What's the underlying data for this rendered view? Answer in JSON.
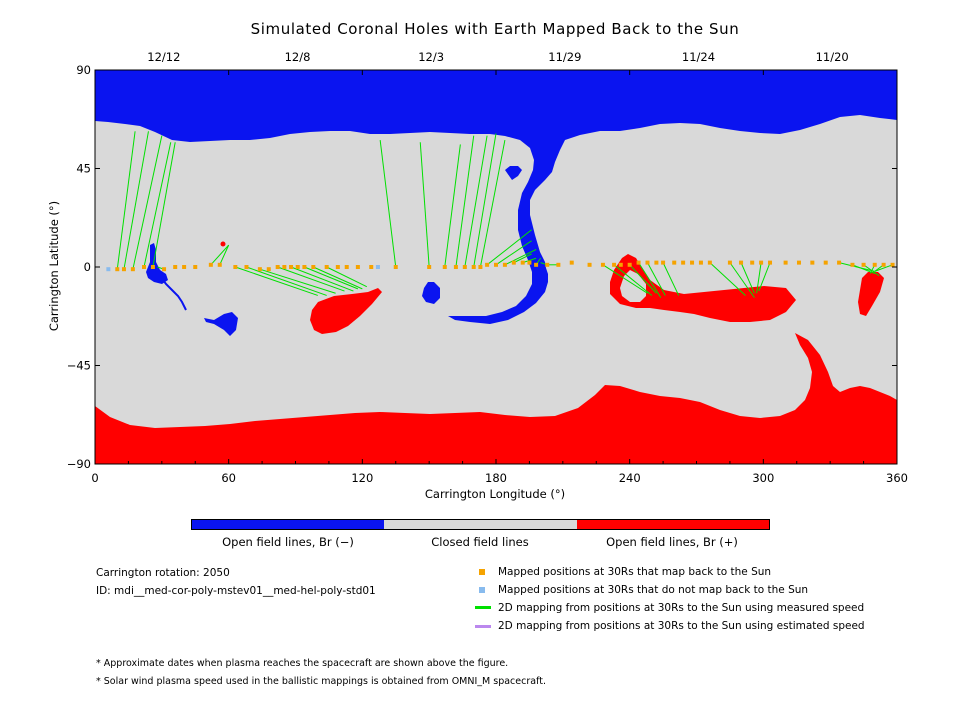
{
  "chart_data": {
    "type": "scatter",
    "title": "Simulated Coronal Holes with Earth Mapped Back to the Sun",
    "xlabel": "Carrington Longitude (°)",
    "ylabel": "Carrington Latitude (°)",
    "xlim": [
      0,
      360
    ],
    "ylim": [
      -90,
      90
    ],
    "x_ticks": [
      "0",
      "60",
      "120",
      "180",
      "240",
      "300",
      "360"
    ],
    "y_ticks": [
      "90",
      "45",
      "0",
      "-45",
      "-90"
    ],
    "top_date_axis": [
      {
        "label": "12/12",
        "lon": 30
      },
      {
        "label": "12/8",
        "lon": 90
      },
      {
        "label": "12/3",
        "lon": 150
      },
      {
        "label": "11/29",
        "lon": 210
      },
      {
        "label": "11/24",
        "lon": 270
      },
      {
        "label": "11/20",
        "lon": 330
      }
    ],
    "colors": {
      "open_negative": "#0a14f0",
      "closed": "#d9d9d9",
      "open_positive": "#ff0000",
      "mapped": "#f5a300",
      "not_mapped": "#88bbee",
      "measured_line": "#00e000",
      "estimated_line": "#bb88ee"
    },
    "colorbar_labels": [
      "Open field lines, Br (−)",
      "Closed field lines",
      "Open field lines, Br (+)"
    ],
    "series": [
      {
        "name": "Mapped positions at 30Rs that map back to the Sun",
        "lon": [
          10,
          13,
          17,
          22,
          26,
          31,
          36,
          40,
          45,
          52,
          56,
          63,
          68,
          74,
          78,
          82,
          85,
          88,
          91,
          94,
          98,
          104,
          109,
          113,
          118,
          124,
          135,
          150,
          157,
          162,
          166,
          170,
          173,
          176,
          180,
          184,
          188,
          192,
          195,
          198,
          203,
          208,
          214,
          222,
          228,
          233,
          236,
          240,
          244,
          248,
          252,
          255,
          260,
          264,
          268,
          272,
          276,
          285,
          290,
          295,
          299,
          303,
          310,
          316,
          322,
          328,
          334,
          340,
          345,
          350,
          354,
          358
        ],
        "lat": [
          -1,
          -1,
          -1,
          0,
          0,
          -1,
          0,
          0,
          0,
          1,
          1,
          0,
          0,
          -1,
          -1,
          0,
          0,
          0,
          0,
          0,
          0,
          0,
          0,
          0,
          0,
          0,
          0,
          0,
          0,
          0,
          0,
          0,
          0,
          1,
          1,
          1,
          2,
          2,
          2,
          1,
          1,
          1,
          2,
          1,
          1,
          1,
          1,
          1,
          2,
          2,
          2,
          2,
          2,
          2,
          2,
          2,
          2,
          2,
          2,
          2,
          2,
          2,
          2,
          2,
          2,
          2,
          2,
          1,
          1,
          1,
          1,
          1
        ]
      },
      {
        "name": "Mapped positions at 30Rs that do not map back to the Sun",
        "lon": [
          6,
          127
        ],
        "lat": [
          -1,
          0
        ]
      }
    ],
    "mapping_lines": [
      {
        "lon": [
          10,
          18
        ],
        "lat": [
          -1,
          62
        ]
      },
      {
        "lon": [
          13,
          24
        ],
        "lat": [
          -1,
          62
        ]
      },
      {
        "lon": [
          17,
          30
        ],
        "lat": [
          -1,
          60
        ]
      },
      {
        "lon": [
          22,
          34
        ],
        "lat": [
          0,
          57
        ]
      },
      {
        "lon": [
          26,
          36
        ],
        "lat": [
          0,
          57
        ]
      },
      {
        "lon": [
          31,
          28
        ],
        "lat": [
          -1,
          0
        ]
      },
      {
        "lon": [
          52,
          60
        ],
        "lat": [
          1,
          10
        ]
      },
      {
        "lon": [
          56,
          60
        ],
        "lat": [
          1,
          10
        ]
      },
      {
        "lon": [
          63,
          100
        ],
        "lat": [
          0,
          -13
        ]
      },
      {
        "lon": [
          68,
          104
        ],
        "lat": [
          0,
          -13
        ]
      },
      {
        "lon": [
          74,
          108
        ],
        "lat": [
          -1,
          -12
        ]
      },
      {
        "lon": [
          82,
          112
        ],
        "lat": [
          0,
          -11
        ]
      },
      {
        "lon": [
          88,
          116
        ],
        "lat": [
          0,
          -11
        ]
      },
      {
        "lon": [
          94,
          118
        ],
        "lat": [
          0,
          -10
        ]
      },
      {
        "lon": [
          98,
          120
        ],
        "lat": [
          0,
          -10
        ]
      },
      {
        "lon": [
          104,
          122
        ],
        "lat": [
          0,
          -9
        ]
      },
      {
        "lon": [
          135,
          128
        ],
        "lat": [
          0,
          58
        ]
      },
      {
        "lon": [
          150,
          146
        ],
        "lat": [
          0,
          57
        ]
      },
      {
        "lon": [
          157,
          164
        ],
        "lat": [
          0,
          56
        ]
      },
      {
        "lon": [
          162,
          170
        ],
        "lat": [
          0,
          60
        ]
      },
      {
        "lon": [
          166,
          176
        ],
        "lat": [
          0,
          60
        ]
      },
      {
        "lon": [
          170,
          180
        ],
        "lat": [
          0,
          61
        ]
      },
      {
        "lon": [
          173,
          184
        ],
        "lat": [
          0,
          58
        ]
      },
      {
        "lon": [
          176,
          196
        ],
        "lat": [
          1,
          17
        ]
      },
      {
        "lon": [
          180,
          196
        ],
        "lat": [
          1,
          12
        ]
      },
      {
        "lon": [
          184,
          198
        ],
        "lat": [
          1,
          8
        ]
      },
      {
        "lon": [
          188,
          196
        ],
        "lat": [
          2,
          6
        ]
      },
      {
        "lon": [
          192,
          198
        ],
        "lat": [
          2,
          4
        ]
      },
      {
        "lon": [
          198,
          200
        ],
        "lat": [
          1,
          4
        ]
      },
      {
        "lon": [
          203,
          200
        ],
        "lat": [
          1,
          2
        ]
      },
      {
        "lon": [
          208,
          202
        ],
        "lat": [
          1,
          1
        ]
      },
      {
        "lon": [
          228,
          248
        ],
        "lat": [
          1,
          -12
        ]
      },
      {
        "lon": [
          233,
          250
        ],
        "lat": [
          1,
          -13
        ]
      },
      {
        "lon": [
          240,
          252
        ],
        "lat": [
          1,
          -12
        ]
      },
      {
        "lon": [
          244,
          254
        ],
        "lat": [
          2,
          -14
        ]
      },
      {
        "lon": [
          248,
          256
        ],
        "lat": [
          2,
          -13
        ]
      },
      {
        "lon": [
          255,
          262
        ],
        "lat": [
          2,
          -13
        ]
      },
      {
        "lon": [
          276,
          292
        ],
        "lat": [
          2,
          -13
        ]
      },
      {
        "lon": [
          285,
          296
        ],
        "lat": [
          2,
          -14
        ]
      },
      {
        "lon": [
          290,
          296
        ],
        "lat": [
          2,
          -12
        ]
      },
      {
        "lon": [
          299,
          297
        ],
        "lat": [
          2,
          -12
        ]
      },
      {
        "lon": [
          303,
          298
        ],
        "lat": [
          2,
          -11
        ]
      },
      {
        "lon": [
          334,
          350
        ],
        "lat": [
          2,
          -2
        ]
      },
      {
        "lon": [
          340,
          350
        ],
        "lat": [
          1,
          -3
        ]
      },
      {
        "lon": [
          345,
          352
        ],
        "lat": [
          1,
          -4
        ]
      },
      {
        "lon": [
          350,
          348
        ],
        "lat": [
          1,
          -3
        ]
      },
      {
        "lon": [
          354,
          350
        ],
        "lat": [
          1,
          -2
        ]
      },
      {
        "lon": [
          358,
          350
        ],
        "lat": [
          1,
          -2
        ]
      }
    ]
  },
  "info": {
    "rotation": "Carrington rotation: 2050",
    "id": "ID: mdi__med-cor-poly-mstev01__med-hel-poly-std01"
  },
  "legend": [
    "Mapped positions at 30Rs that map back to the Sun",
    "Mapped positions at 30Rs that do not map back to the Sun",
    "2D mapping from positions at 30Rs to the Sun using measured speed",
    "2D mapping from positions at 30Rs to the Sun using estimated speed"
  ],
  "notes": [
    "* Approximate dates when plasma reaches the spacecraft are shown above the figure.",
    "* Solar wind plasma speed used in the ballistic mappings is obtained from OMNI_M spacecraft."
  ]
}
